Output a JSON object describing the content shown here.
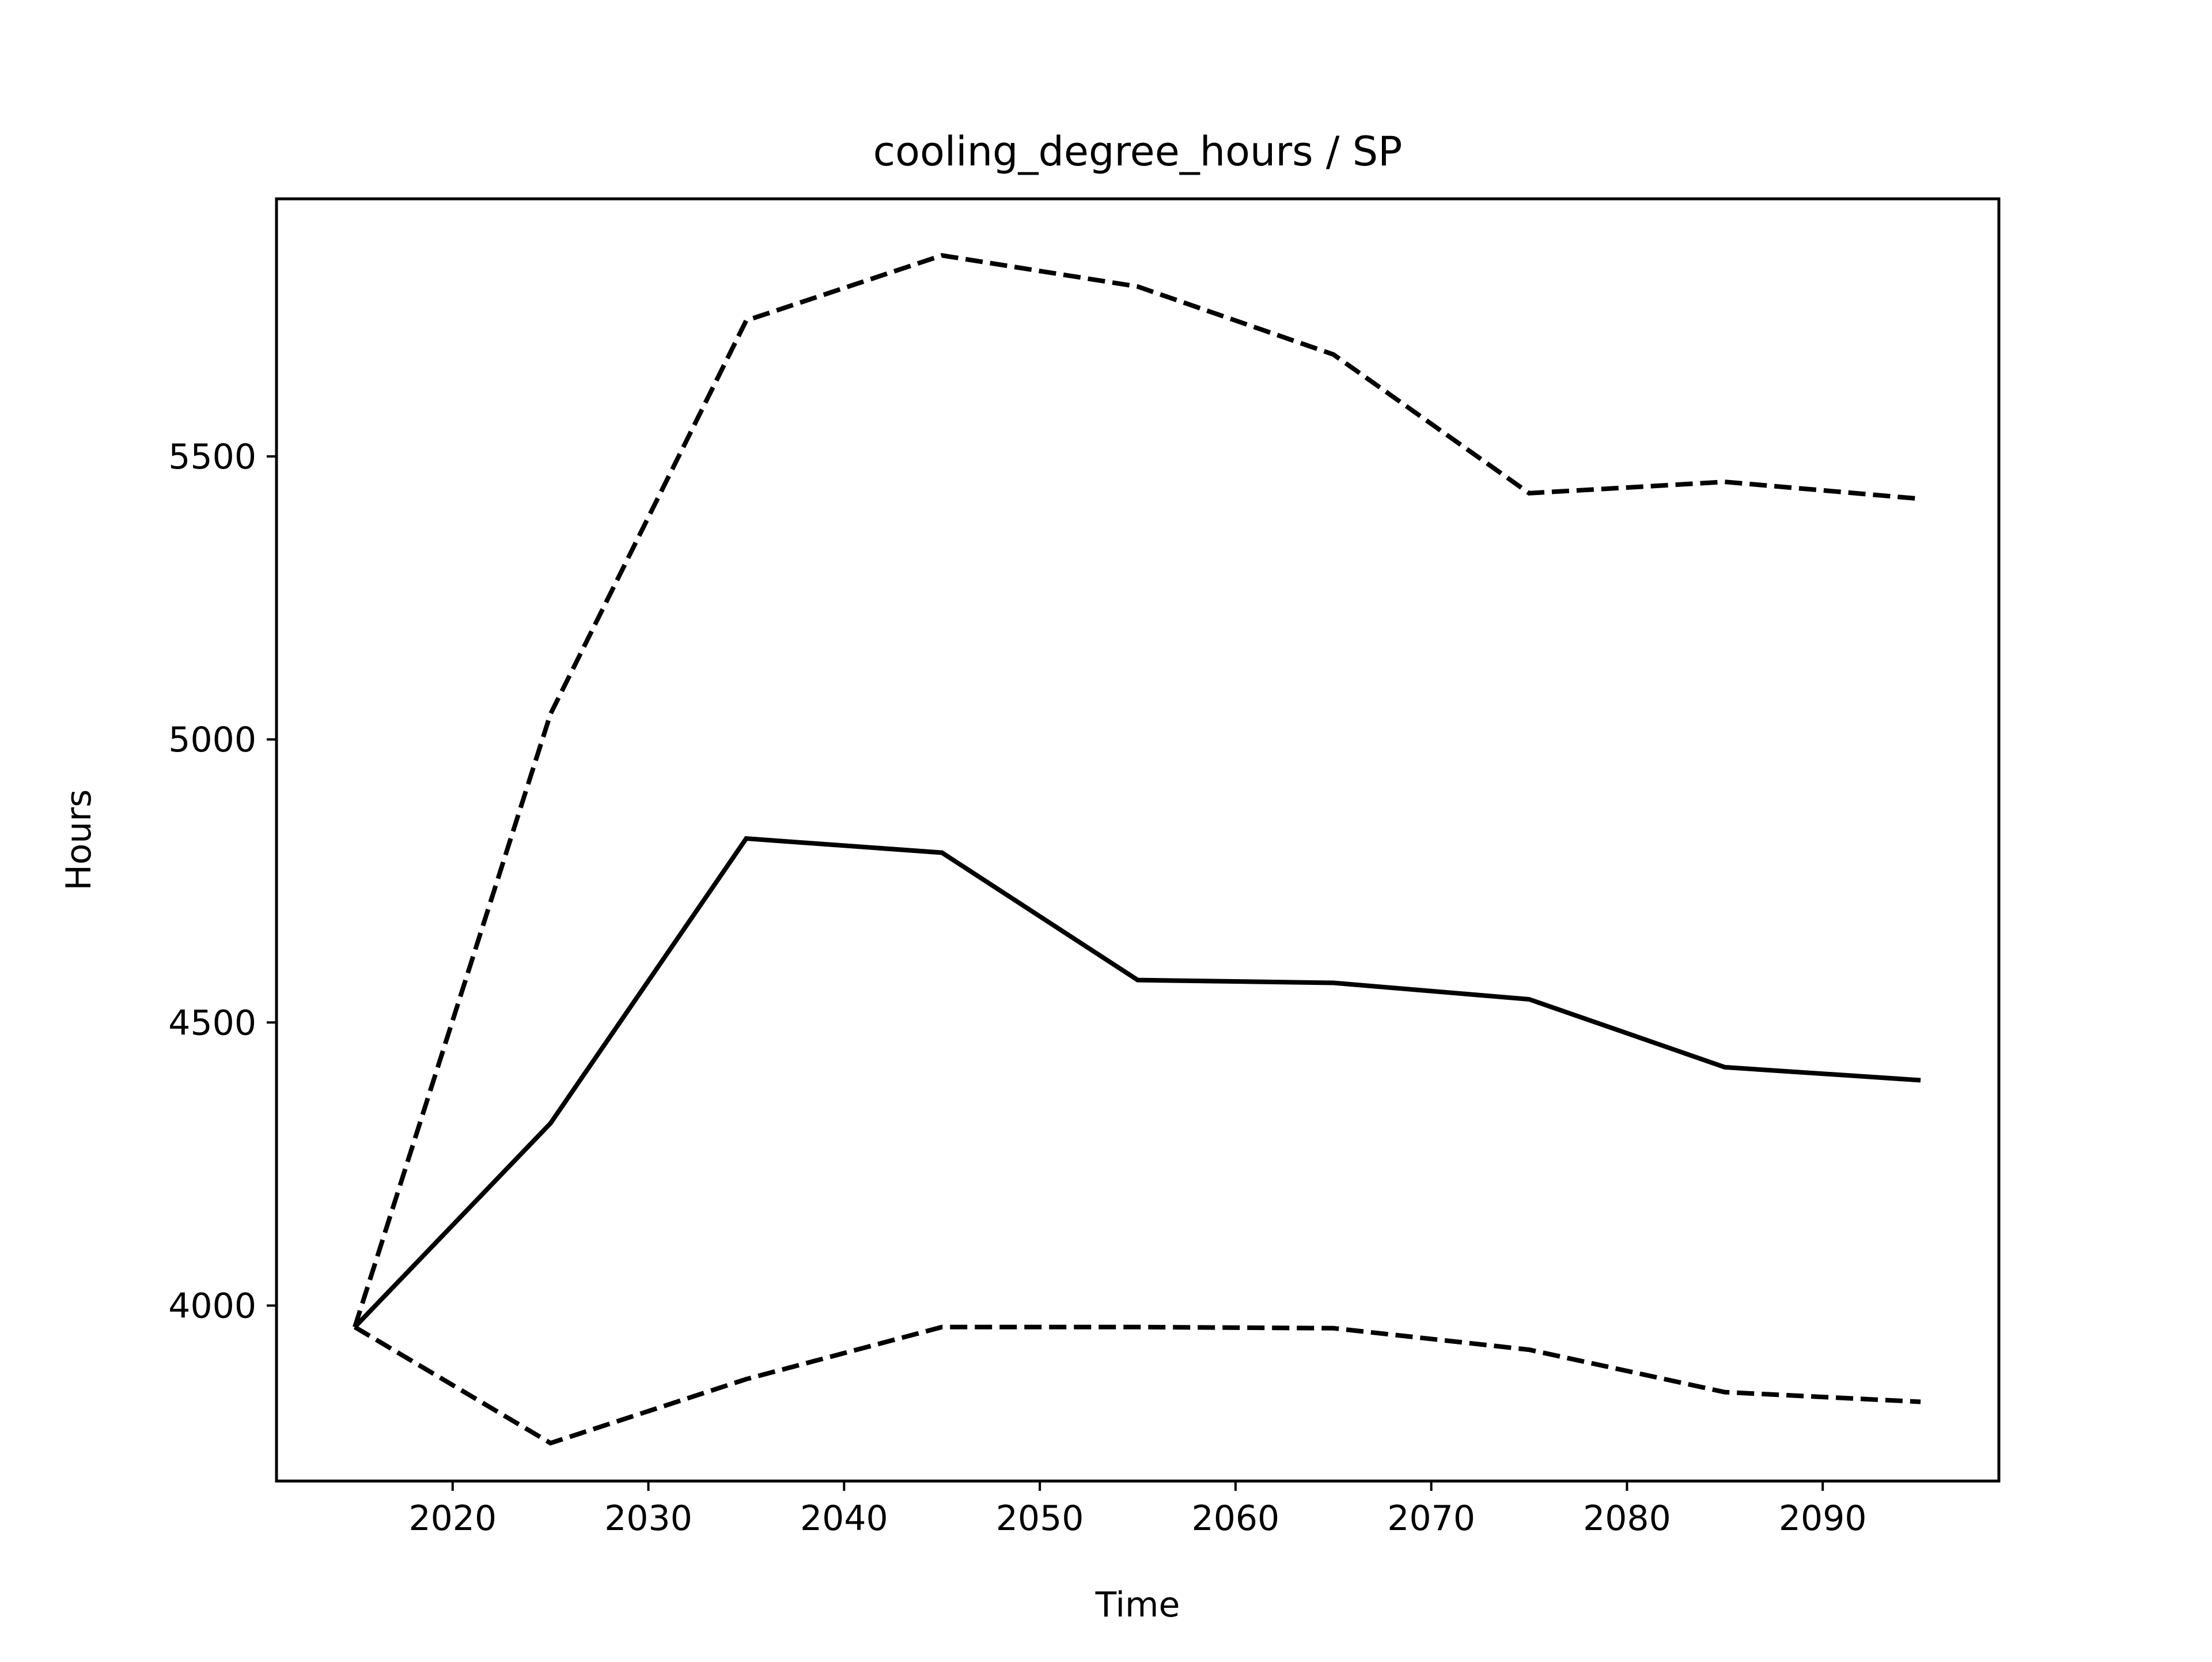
{
  "chart_data": {
    "type": "line",
    "title": "cooling_degree_hours / SP",
    "xlabel": "Time",
    "ylabel": "Hours",
    "xlim": [
      2011,
      2099
    ],
    "ylim": [
      3690,
      5955
    ],
    "xticks": [
      2020,
      2030,
      2040,
      2050,
      2060,
      2070,
      2080,
      2090
    ],
    "yticks": [
      4000,
      4500,
      5000,
      5500
    ],
    "x": [
      2015,
      2025,
      2035,
      2045,
      2055,
      2065,
      2075,
      2085,
      2095
    ],
    "series": [
      {
        "style": "solid",
        "values": [
          3962,
          4322,
          4825,
          4800,
          4575,
          4570,
          4541,
          4421,
          4398
        ]
      },
      {
        "style": "dashed",
        "values": [
          3962,
          5045,
          5740,
          5855,
          5800,
          5680,
          5435,
          5455,
          5425
        ]
      },
      {
        "style": "dashed",
        "values": [
          3962,
          3757,
          3870,
          3962,
          3962,
          3960,
          3922,
          3847,
          3830
        ]
      }
    ],
    "colors": {
      "line": "#000000",
      "background": "#ffffff",
      "axes": "#000000"
    },
    "grid": false,
    "legend": "none"
  }
}
